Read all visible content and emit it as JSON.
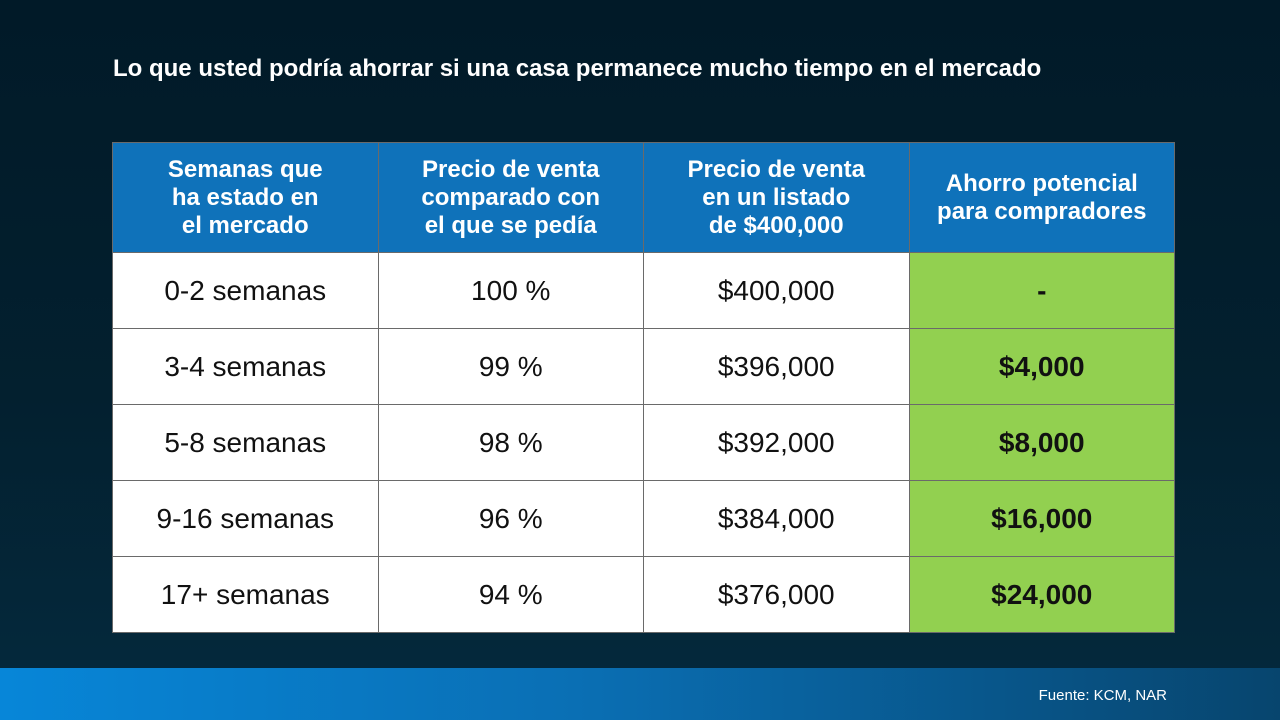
{
  "title": "Lo que usted podría ahorrar si una casa permanece mucho tiempo en el mercado",
  "source": "Fuente: KCM, NAR",
  "colors": {
    "header": "#0f72ba",
    "savings": "#92d050",
    "background": "#011a28"
  },
  "chart_data": {
    "type": "table",
    "columns": [
      "Semanas que\nha estado en\nel mercado",
      "Precio de venta\ncomparado con\nel que se pedía",
      "Precio de venta\nen un listado\nde $400,000",
      "Ahorro potencial\npara compradores"
    ],
    "rows": [
      [
        "0-2 semanas",
        "100 %",
        "$400,000",
        "-"
      ],
      [
        "3-4 semanas",
        "99 %",
        "$396,000",
        "$4,000"
      ],
      [
        "5-8 semanas",
        "98 %",
        "$392,000",
        "$8,000"
      ],
      [
        "9-16 semanas",
        "96 %",
        "$384,000",
        "$16,000"
      ],
      [
        "17+ semanas",
        "94 %",
        "$376,000",
        "$24,000"
      ]
    ]
  }
}
